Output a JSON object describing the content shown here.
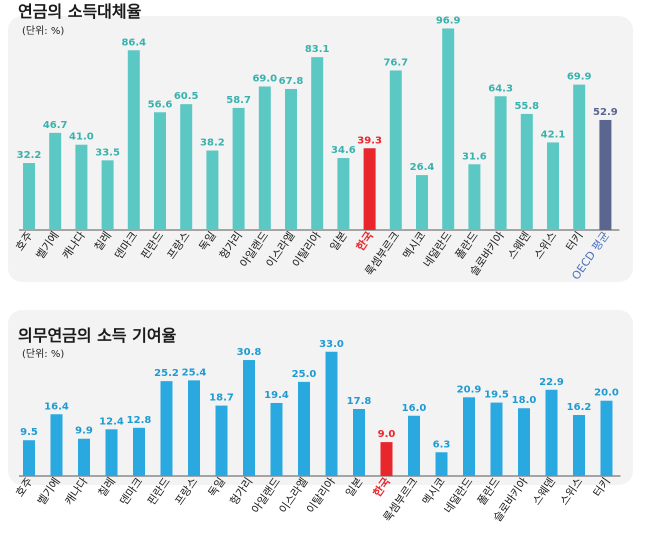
{
  "colors": {
    "teal": "#5cc8c4",
    "blue": "#29a9e0",
    "highlight": "#e8262b",
    "oecd": "#5a6590",
    "label_teal": "#38b2ad",
    "label_blue": "#1f9bd1",
    "text": "#1a1a1a"
  },
  "chart_data": [
    {
      "type": "bar",
      "title": "연금의 소득대체율",
      "unit_note": "(단위: %)",
      "categories": [
        "호주",
        "벨기에",
        "캐나다",
        "칠레",
        "덴마크",
        "핀란드",
        "프랑스",
        "독일",
        "헝가리",
        "아일랜드",
        "이스라엘",
        "이탈리아",
        "일본",
        "한국",
        "룩셈부르크",
        "멕시코",
        "네덜란드",
        "폴란드",
        "슬로바키아",
        "스웨덴",
        "스위스",
        "터키",
        "OECD 평균"
      ],
      "values": [
        32.2,
        46.7,
        41.0,
        33.5,
        86.4,
        56.6,
        60.5,
        38.2,
        58.7,
        69.0,
        67.8,
        83.1,
        34.6,
        39.3,
        76.7,
        26.4,
        96.9,
        31.6,
        64.3,
        55.8,
        42.1,
        69.9,
        52.9
      ],
      "value_labels": [
        "32.2",
        "46.7",
        "41.0",
        "33.5",
        "86.4",
        "56.6",
        "60.5",
        "38.2",
        "58.7",
        "69.0",
        "67.8",
        "83.1",
        "34.6",
        "39.3",
        "76.7",
        "26.4",
        "96.9",
        "31.6",
        "64.3",
        "55.8",
        "42.1",
        "69.9",
        "52.9"
      ],
      "highlight": "한국",
      "average": "OECD 평균",
      "ylim": [
        0,
        100
      ]
    },
    {
      "type": "bar",
      "title": "의무연금의 소득 기여율",
      "unit_note": "(단위: %)",
      "categories": [
        "호주",
        "벨기에",
        "캐나다",
        "칠레",
        "덴마크",
        "핀란드",
        "프랑스",
        "독일",
        "헝가리",
        "아일랜드",
        "이스라엘",
        "이탈리아",
        "일본",
        "한국",
        "룩셈부르크",
        "멕시코",
        "네덜란드",
        "폴란드",
        "슬로바키아",
        "스웨덴",
        "스위스",
        "터키"
      ],
      "values": [
        9.5,
        16.4,
        9.9,
        12.4,
        12.8,
        25.2,
        25.4,
        18.7,
        30.8,
        19.4,
        25.0,
        33.0,
        17.8,
        9.0,
        16.0,
        6.3,
        20.9,
        19.5,
        18.0,
        22.9,
        16.2,
        20.0
      ],
      "value_labels": [
        "9.5",
        "16.4",
        "9.9",
        "12.4",
        "12.8",
        "25.2",
        "25.4",
        "18.7",
        "30.8",
        "19.4",
        "25.0",
        "33.0",
        "17.8",
        "9.0",
        "16.0",
        "6.3",
        "20.9",
        "19.5",
        "18.0",
        "22.9",
        "16.2",
        "20.0"
      ],
      "highlight": "한국",
      "ylim": [
        0,
        34
      ]
    }
  ]
}
